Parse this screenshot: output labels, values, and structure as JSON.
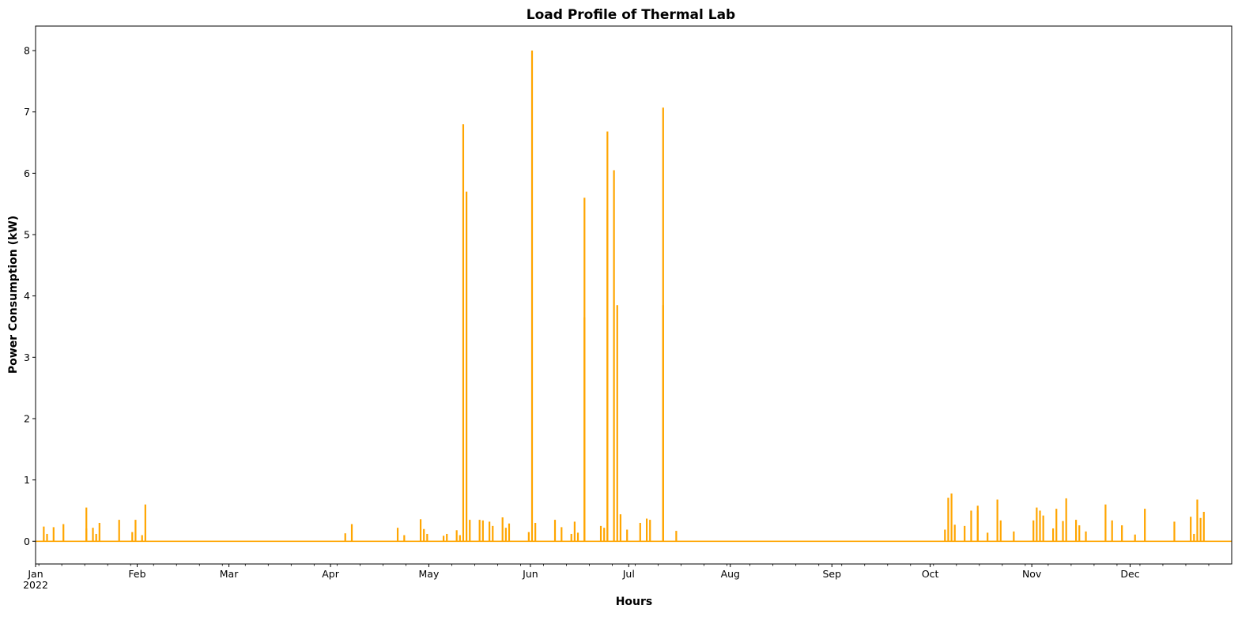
{
  "chart_data": {
    "type": "line",
    "title": "Load Profile of Thermal Lab",
    "xlabel": "Hours",
    "ylabel": "Power Consumption (kW)",
    "color": "#ffa500",
    "grid": false,
    "xlim": [
      "2022-01-01",
      "2022-12-31"
    ],
    "ylim": [
      -0.37,
      8.4
    ],
    "y_ticks": [
      0,
      1,
      2,
      3,
      4,
      5,
      6,
      7,
      8
    ],
    "x_tick_labels": [
      {
        "date": "2022-01-01",
        "label": "Jan",
        "sublabel": "2022"
      },
      {
        "date": "2022-02-01",
        "label": "Feb"
      },
      {
        "date": "2022-03-01",
        "label": "Mar"
      },
      {
        "date": "2022-04-01",
        "label": "Apr"
      },
      {
        "date": "2022-05-01",
        "label": "May"
      },
      {
        "date": "2022-06-01",
        "label": "Jun"
      },
      {
        "date": "2022-07-01",
        "label": "Jul"
      },
      {
        "date": "2022-08-01",
        "label": "Aug"
      },
      {
        "date": "2022-09-01",
        "label": "Sep"
      },
      {
        "date": "2022-10-01",
        "label": "Oct"
      },
      {
        "date": "2022-11-01",
        "label": "Nov"
      },
      {
        "date": "2022-12-01",
        "label": "Dec"
      }
    ],
    "series": [
      {
        "points": [
          {
            "x": "2022-01-03",
            "y": 0.24
          },
          {
            "x": "2022-01-04",
            "y": 0.12
          },
          {
            "x": "2022-01-06",
            "y": 0.23
          },
          {
            "x": "2022-01-09",
            "y": 0.28
          },
          {
            "x": "2022-01-16",
            "y": 0.21
          },
          {
            "x": "2022-01-16",
            "y": 0.55
          },
          {
            "x": "2022-01-18",
            "y": 0.22
          },
          {
            "x": "2022-01-19",
            "y": 0.12
          },
          {
            "x": "2022-01-20",
            "y": 0.3
          },
          {
            "x": "2022-01-26",
            "y": 0.35
          },
          {
            "x": "2022-01-30",
            "y": 0.15
          },
          {
            "x": "2022-01-31",
            "y": 0.35
          },
          {
            "x": "2022-02-02",
            "y": 0.1
          },
          {
            "x": "2022-02-03",
            "y": 0.6
          },
          {
            "x": "2022-04-05",
            "y": 0.13
          },
          {
            "x": "2022-04-07",
            "y": 0.28
          },
          {
            "x": "2022-04-21",
            "y": 0.22
          },
          {
            "x": "2022-04-23",
            "y": 0.1
          },
          {
            "x": "2022-04-28",
            "y": 0.36
          },
          {
            "x": "2022-04-29",
            "y": 0.2
          },
          {
            "x": "2022-04-30",
            "y": 0.12
          },
          {
            "x": "2022-05-05",
            "y": 0.09
          },
          {
            "x": "2022-05-06",
            "y": 0.12
          },
          {
            "x": "2022-05-09",
            "y": 0.18
          },
          {
            "x": "2022-05-10",
            "y": 0.1
          },
          {
            "x": "2022-05-11",
            "y": 6.8
          },
          {
            "x": "2022-05-12",
            "y": 5.7
          },
          {
            "x": "2022-05-13",
            "y": 0.35
          },
          {
            "x": "2022-05-16",
            "y": 0.35
          },
          {
            "x": "2022-05-17",
            "y": 0.34
          },
          {
            "x": "2022-05-19",
            "y": 0.32
          },
          {
            "x": "2022-05-20",
            "y": 0.25
          },
          {
            "x": "2022-05-23",
            "y": 0.39
          },
          {
            "x": "2022-05-24",
            "y": 0.22
          },
          {
            "x": "2022-05-25",
            "y": 0.29
          },
          {
            "x": "2022-05-31",
            "y": 0.15
          },
          {
            "x": "2022-06-01",
            "y": 8.0
          },
          {
            "x": "2022-06-02",
            "y": 0.3
          },
          {
            "x": "2022-06-08",
            "y": 0.35
          },
          {
            "x": "2022-06-10",
            "y": 0.23
          },
          {
            "x": "2022-06-13",
            "y": 0.12
          },
          {
            "x": "2022-06-14",
            "y": 0.32
          },
          {
            "x": "2022-06-15",
            "y": 0.14
          },
          {
            "x": "2022-06-17",
            "y": 5.6
          },
          {
            "x": "2022-06-17",
            "y": 3.65
          },
          {
            "x": "2022-06-22",
            "y": 0.25
          },
          {
            "x": "2022-06-23",
            "y": 0.22
          },
          {
            "x": "2022-06-24",
            "y": 6.68
          },
          {
            "x": "2022-06-24",
            "y": 5.4
          },
          {
            "x": "2022-06-26",
            "y": 6.05
          },
          {
            "x": "2022-06-27",
            "y": 3.85
          },
          {
            "x": "2022-06-28",
            "y": 0.44
          },
          {
            "x": "2022-06-30",
            "y": 0.19
          },
          {
            "x": "2022-07-04",
            "y": 0.3
          },
          {
            "x": "2022-07-06",
            "y": 0.37
          },
          {
            "x": "2022-07-07",
            "y": 0.35
          },
          {
            "x": "2022-07-11",
            "y": 7.07
          },
          {
            "x": "2022-07-11",
            "y": 3.85
          },
          {
            "x": "2022-07-15",
            "y": 0.17
          },
          {
            "x": "2022-10-05",
            "y": 0.19
          },
          {
            "x": "2022-10-06",
            "y": 0.71
          },
          {
            "x": "2022-10-07",
            "y": 0.78
          },
          {
            "x": "2022-10-08",
            "y": 0.27
          },
          {
            "x": "2022-10-11",
            "y": 0.25
          },
          {
            "x": "2022-10-13",
            "y": 0.5
          },
          {
            "x": "2022-10-15",
            "y": 0.58
          },
          {
            "x": "2022-10-15",
            "y": 0.5
          },
          {
            "x": "2022-10-18",
            "y": 0.14
          },
          {
            "x": "2022-10-21",
            "y": 0.68
          },
          {
            "x": "2022-10-22",
            "y": 0.34
          },
          {
            "x": "2022-10-26",
            "y": 0.16
          },
          {
            "x": "2022-11-01",
            "y": 0.34
          },
          {
            "x": "2022-11-02",
            "y": 0.55
          },
          {
            "x": "2022-11-03",
            "y": 0.5
          },
          {
            "x": "2022-11-04",
            "y": 0.42
          },
          {
            "x": "2022-11-07",
            "y": 0.21
          },
          {
            "x": "2022-11-08",
            "y": 0.53
          },
          {
            "x": "2022-11-10",
            "y": 0.33
          },
          {
            "x": "2022-11-11",
            "y": 0.7
          },
          {
            "x": "2022-11-14",
            "y": 0.35
          },
          {
            "x": "2022-11-15",
            "y": 0.26
          },
          {
            "x": "2022-11-17",
            "y": 0.16
          },
          {
            "x": "2022-11-23",
            "y": 0.6
          },
          {
            "x": "2022-11-25",
            "y": 0.34
          },
          {
            "x": "2022-11-28",
            "y": 0.26
          },
          {
            "x": "2022-12-02",
            "y": 0.11
          },
          {
            "x": "2022-12-05",
            "y": 0.53
          },
          {
            "x": "2022-12-14",
            "y": 0.32
          },
          {
            "x": "2022-12-19",
            "y": 0.4
          },
          {
            "x": "2022-12-20",
            "y": 0.12
          },
          {
            "x": "2022-12-21",
            "y": 0.68
          },
          {
            "x": "2022-12-22",
            "y": 0.38
          },
          {
            "x": "2022-12-23",
            "y": 0.48
          }
        ]
      }
    ]
  }
}
